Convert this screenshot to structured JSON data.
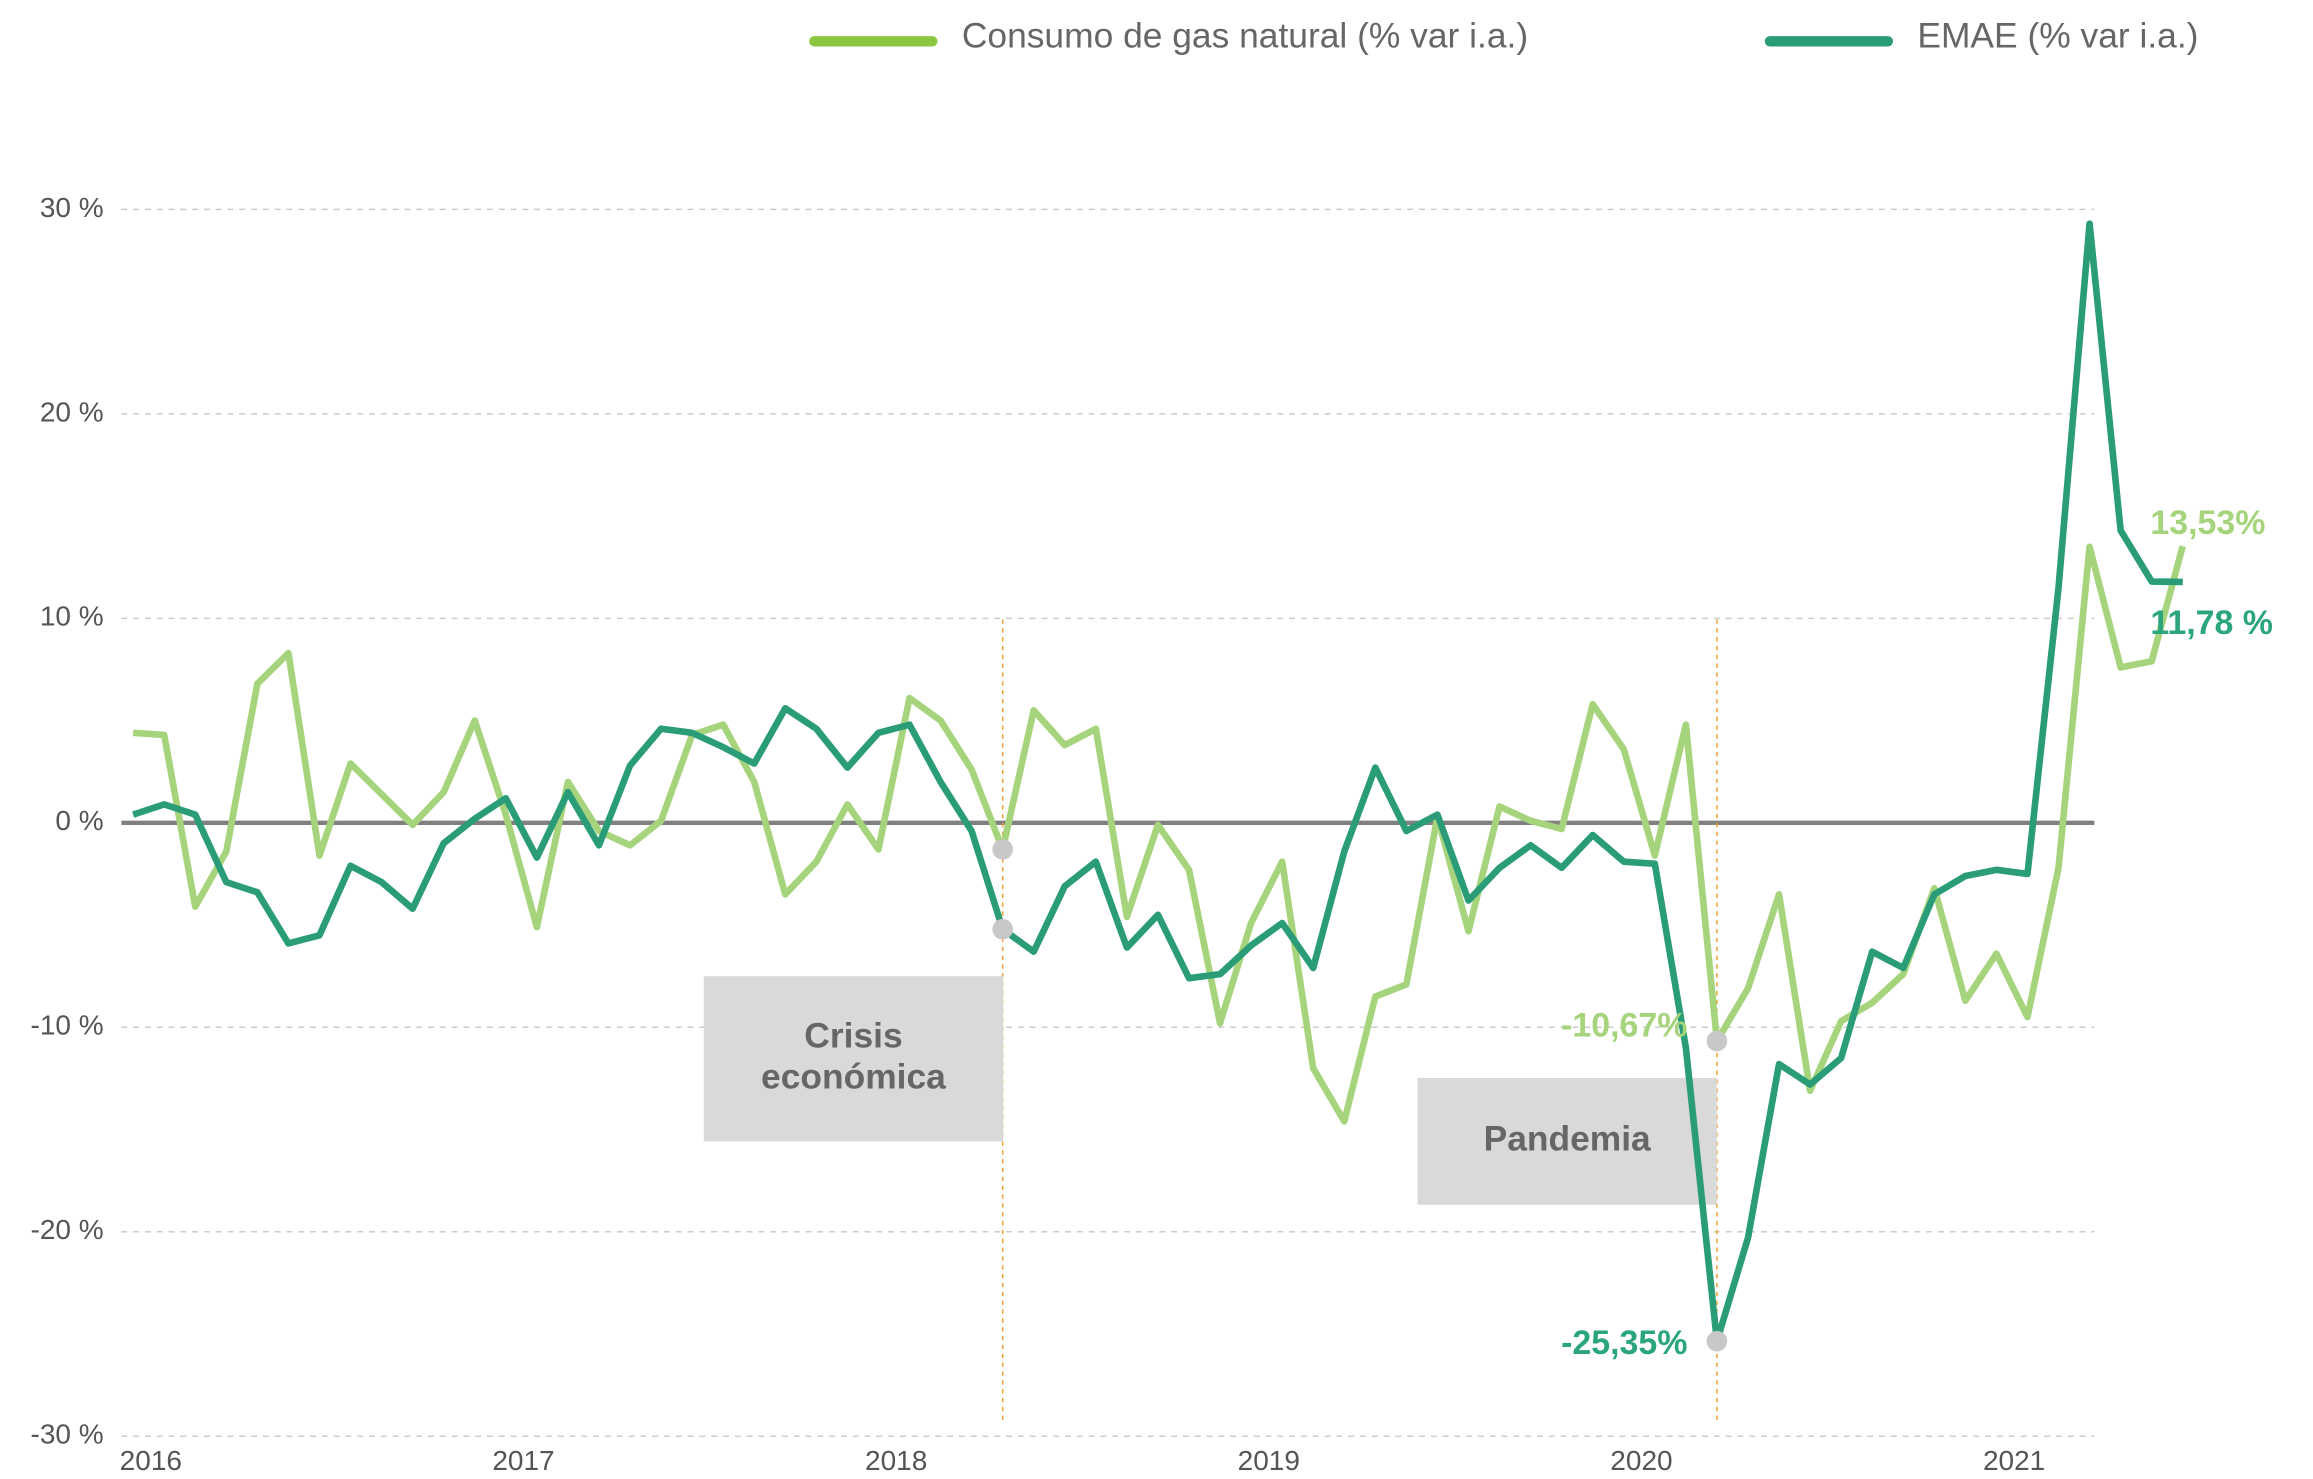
{
  "chart_data": {
    "type": "line",
    "categories": [
      "2016",
      null,
      null,
      null,
      null,
      null,
      null,
      null,
      null,
      null,
      null,
      null,
      "2017",
      null,
      null,
      null,
      null,
      null,
      null,
      null,
      null,
      null,
      null,
      null,
      "2018",
      null,
      null,
      null,
      null,
      null,
      null,
      null,
      null,
      null,
      null,
      null,
      "2019",
      null,
      null,
      null,
      null,
      null,
      null,
      null,
      null,
      null,
      null,
      null,
      "2020",
      null,
      null,
      null,
      null,
      null,
      null,
      null,
      null,
      null,
      null,
      null,
      "2021",
      null,
      null,
      null,
      null,
      null,
      null
    ],
    "series": [
      {
        "name": "Consumo de gas natural (% var i.a.)",
        "color": "#a6d47c",
        "values": [
          4.4,
          4.3,
          -4.1,
          -1.4,
          6.8,
          8.3,
          -1.6,
          2.9,
          1.4,
          -0.1,
          1.5,
          5.0,
          0.4,
          -5.1,
          2.0,
          -0.4,
          -1.1,
          0.1,
          4.3,
          4.8,
          2.0,
          -3.5,
          -1.9,
          0.9,
          -1.3,
          6.1,
          5.0,
          2.6,
          -1.3,
          5.5,
          3.8,
          4.6,
          -4.6,
          -0.1,
          -2.3,
          -9.8,
          -4.9,
          -1.9,
          -12.0,
          -14.6,
          -8.5,
          -7.9,
          0.3,
          -5.3,
          0.8,
          0.1,
          -0.3,
          5.8,
          3.6,
          -1.6,
          4.8,
          -10.67,
          -8.1,
          -3.5,
          -13.1,
          -9.7,
          -8.8,
          -7.4,
          -3.2,
          -8.7,
          -6.4,
          -9.5,
          -2.2,
          13.5,
          7.6,
          7.9,
          13.53
        ],
        "value_labels": [
          null,
          null,
          null,
          null,
          null,
          null,
          null,
          null,
          null,
          null,
          null,
          null,
          null,
          null,
          null,
          null,
          null,
          null,
          null,
          null,
          null,
          null,
          null,
          null,
          null,
          null,
          null,
          null,
          null,
          null,
          null,
          null,
          null,
          null,
          null,
          null,
          null,
          null,
          null,
          null,
          null,
          null,
          null,
          null,
          null,
          null,
          null,
          null,
          null,
          null,
          null,
          "-10,67%",
          null,
          null,
          null,
          null,
          null,
          null,
          null,
          null,
          null,
          null,
          null,
          null,
          null,
          null,
          "13,53%"
        ]
      },
      {
        "name": "EMAE  (% var i.a.)",
        "color": "#2a9d78",
        "values": [
          0.4,
          0.9,
          0.4,
          -2.9,
          -3.4,
          -5.9,
          -5.5,
          -2.1,
          -2.9,
          -4.2,
          -1.0,
          0.2,
          1.2,
          -1.7,
          1.5,
          -1.1,
          2.8,
          4.6,
          4.4,
          3.7,
          2.9,
          5.6,
          4.6,
          2.7,
          4.4,
          4.8,
          2.0,
          -0.4,
          -5.2,
          -6.3,
          -3.1,
          -1.9,
          -6.1,
          -4.5,
          -7.6,
          -7.4,
          -6.0,
          -4.9,
          -7.1,
          -1.4,
          2.7,
          -0.4,
          0.4,
          -3.8,
          -2.2,
          -1.1,
          -2.2,
          -0.6,
          -1.9,
          -2.0,
          -11.0,
          -25.35,
          -20.3,
          -11.8,
          -12.8,
          -11.5,
          -6.3,
          -7.1,
          -3.5,
          -2.6,
          -2.3,
          -2.5,
          11.5,
          29.3,
          14.3,
          11.8,
          11.78
        ],
        "value_labels": [
          null,
          null,
          null,
          null,
          null,
          null,
          null,
          null,
          null,
          null,
          null,
          null,
          null,
          null,
          null,
          null,
          null,
          null,
          null,
          null,
          null,
          null,
          null,
          null,
          null,
          null,
          null,
          null,
          null,
          null,
          null,
          null,
          null,
          null,
          null,
          null,
          null,
          null,
          null,
          null,
          null,
          null,
          null,
          null,
          null,
          null,
          null,
          null,
          null,
          null,
          null,
          "-25,35%",
          null,
          null,
          null,
          null,
          null,
          null,
          null,
          null,
          null,
          null,
          null,
          null,
          null,
          null,
          "11,78 %"
        ]
      }
    ],
    "ylim": [
      -30,
      30
    ],
    "yticks": [
      {
        "value": -30,
        "label": "-30 %"
      },
      {
        "value": -20,
        "label": "-20 %"
      },
      {
        "value": -10,
        "label": "-10 %"
      },
      {
        "value": 0,
        "label": "0 %"
      },
      {
        "value": 10,
        "label": "10 %"
      },
      {
        "value": 20,
        "label": "20 %"
      },
      {
        "value": 30,
        "label": "30 %"
      }
    ],
    "grid": true,
    "annotations": [
      [
        "Crisis",
        "económica"
      ],
      [
        "Pandemia"
      ]
    ]
  }
}
